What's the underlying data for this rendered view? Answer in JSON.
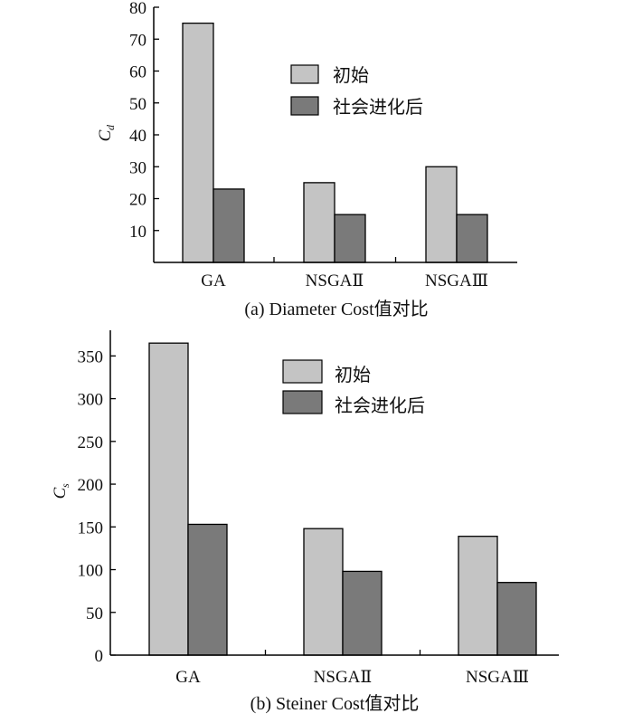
{
  "chart_data": [
    {
      "type": "bar",
      "caption": "(a) Diameter Cost值对比",
      "ylabel": "C",
      "ylabel_sub": "d",
      "categories": [
        "GA",
        "NSGAⅡ",
        "NSGAⅢ"
      ],
      "ylim": [
        0,
        80
      ],
      "yticks": [
        10,
        20,
        30,
        40,
        50,
        60,
        70,
        80
      ],
      "grid": false,
      "legend_position": "top-center",
      "series": [
        {
          "name": "初始",
          "color": "#c4c4c4",
          "values": [
            75,
            25,
            30
          ]
        },
        {
          "name": "社会进化后",
          "color": "#7a7a7a",
          "values": [
            23,
            15,
            15
          ]
        }
      ]
    },
    {
      "type": "bar",
      "caption": "(b) Steiner Cost值对比",
      "ylabel": "C",
      "ylabel_sub": "s",
      "categories": [
        "GA",
        "NSGAⅡ",
        "NSGAⅢ"
      ],
      "ylim": [
        0,
        380
      ],
      "yticks": [
        0,
        50,
        100,
        150,
        200,
        250,
        300,
        350
      ],
      "grid": false,
      "legend_position": "top-center",
      "series": [
        {
          "name": "初始",
          "color": "#c4c4c4",
          "values": [
            365,
            148,
            139
          ]
        },
        {
          "name": "社会进化后",
          "color": "#7a7a7a",
          "values": [
            153,
            98,
            85
          ]
        }
      ]
    }
  ]
}
